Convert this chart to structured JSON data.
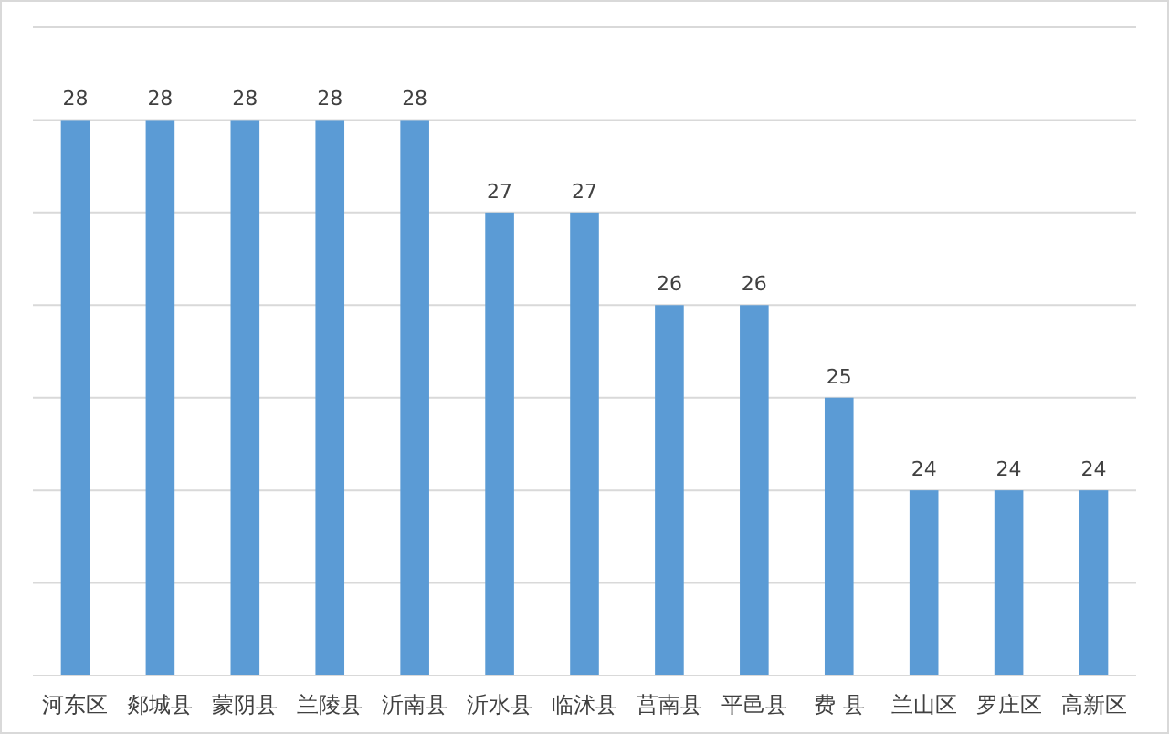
{
  "chart_data": {
    "type": "bar",
    "categories": [
      "河东区",
      "郯城县",
      "蒙阴县",
      "兰陵县",
      "沂南县",
      "沂水县",
      "临沭县",
      "莒南县",
      "平邑县",
      "费 县",
      "兰山区",
      "罗庄区",
      "高新区"
    ],
    "values": [
      28,
      28,
      28,
      28,
      28,
      27,
      27,
      26,
      26,
      25,
      24,
      24,
      24
    ],
    "color": "#5b9bd5",
    "ylim": [
      22,
      29
    ],
    "yticks": [
      {
        "value": 22,
        "label": null
      },
      {
        "value": 23,
        "label": null
      },
      {
        "value": 24,
        "label": null
      },
      {
        "value": 25,
        "label": null
      },
      {
        "value": 26,
        "label": null
      },
      {
        "value": 27,
        "label": null
      },
      {
        "value": 28,
        "label": null
      },
      {
        "value": 29,
        "label": null
      }
    ],
    "tick_labels": "x",
    "grid": "y",
    "data_labels": true
  }
}
